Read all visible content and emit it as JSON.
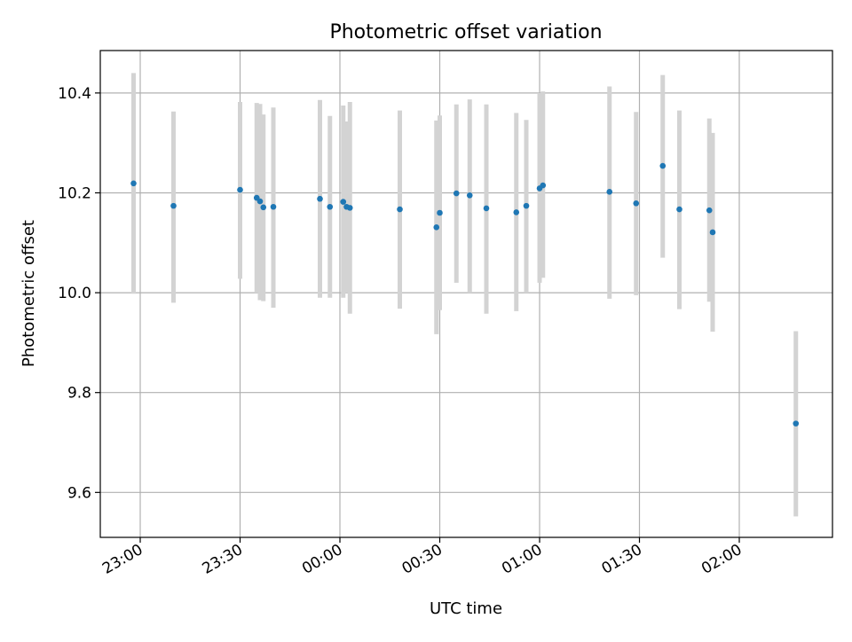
{
  "colors": {
    "point": "#1f77b4",
    "errorbar": "#d3d3d3",
    "grid": "#b0b0b0",
    "axis": "#000000"
  },
  "chart_data": {
    "type": "scatter",
    "title": "Photometric offset variation",
    "xlabel": "UTC time",
    "ylabel": "Photometric offset",
    "xlim": [
      "22:48",
      "02:28"
    ],
    "ylim": [
      9.51,
      10.485
    ],
    "grid": true,
    "x_ticks": [
      "23:00",
      "23:30",
      "00:00",
      "00:30",
      "01:00",
      "01:30",
      "02:00"
    ],
    "y_ticks": [
      "9.6",
      "9.8",
      "10.0",
      "10.2",
      "10.4"
    ],
    "points": [
      {
        "x": "22:58",
        "y": 10.219,
        "low": 9.998,
        "high": 10.44
      },
      {
        "x": "23:10",
        "y": 10.174,
        "low": 9.98,
        "high": 10.363
      },
      {
        "x": "23:30",
        "y": 10.206,
        "low": 10.028,
        "high": 10.382
      },
      {
        "x": "23:35",
        "y": 10.19,
        "low": 10.0,
        "high": 10.38
      },
      {
        "x": "23:36",
        "y": 10.183,
        "low": 9.985,
        "high": 10.378
      },
      {
        "x": "23:37",
        "y": 10.171,
        "low": 9.983,
        "high": 10.357
      },
      {
        "x": "23:40",
        "y": 10.172,
        "low": 9.97,
        "high": 10.371
      },
      {
        "x": "23:54",
        "y": 10.188,
        "low": 9.99,
        "high": 10.386
      },
      {
        "x": "23:57",
        "y": 10.172,
        "low": 9.99,
        "high": 10.354
      },
      {
        "x": "00:01",
        "y": 10.182,
        "low": 9.99,
        "high": 10.375
      },
      {
        "x": "00:02",
        "y": 10.172,
        "low": 10.0,
        "high": 10.343
      },
      {
        "x": "00:03",
        "y": 10.17,
        "low": 9.958,
        "high": 10.382
      },
      {
        "x": "00:18",
        "y": 10.167,
        "low": 9.968,
        "high": 10.365
      },
      {
        "x": "00:29",
        "y": 10.131,
        "low": 9.917,
        "high": 10.345
      },
      {
        "x": "00:30",
        "y": 10.16,
        "low": 9.965,
        "high": 10.355
      },
      {
        "x": "00:35",
        "y": 10.199,
        "low": 10.02,
        "high": 10.377
      },
      {
        "x": "00:39",
        "y": 10.195,
        "low": 10.0,
        "high": 10.387
      },
      {
        "x": "00:44",
        "y": 10.169,
        "low": 9.958,
        "high": 10.377
      },
      {
        "x": "00:53",
        "y": 10.161,
        "low": 9.963,
        "high": 10.36
      },
      {
        "x": "00:56",
        "y": 10.174,
        "low": 10.0,
        "high": 10.346
      },
      {
        "x": "01:00",
        "y": 10.209,
        "low": 10.02,
        "high": 10.4
      },
      {
        "x": "01:01",
        "y": 10.215,
        "low": 10.03,
        "high": 10.403
      },
      {
        "x": "01:21",
        "y": 10.202,
        "low": 9.988,
        "high": 10.413
      },
      {
        "x": "01:29",
        "y": 10.179,
        "low": 9.995,
        "high": 10.362
      },
      {
        "x": "01:37",
        "y": 10.254,
        "low": 10.07,
        "high": 10.436
      },
      {
        "x": "01:42",
        "y": 10.167,
        "low": 9.967,
        "high": 10.365
      },
      {
        "x": "01:51",
        "y": 10.165,
        "low": 9.982,
        "high": 10.349
      },
      {
        "x": "01:52",
        "y": 10.121,
        "low": 9.922,
        "high": 10.32
      },
      {
        "x": "02:17",
        "y": 9.738,
        "low": 9.552,
        "high": 9.923
      }
    ]
  }
}
